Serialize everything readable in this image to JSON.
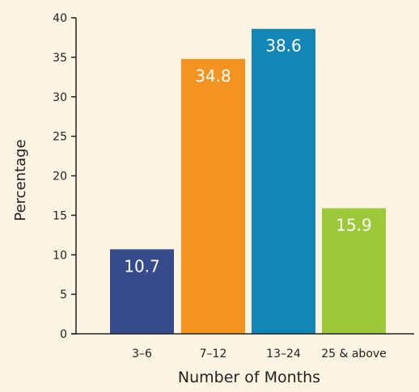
{
  "chart_data": {
    "type": "bar",
    "title": "",
    "xlabel": "Number of Months",
    "ylabel": "Percentage",
    "categories": [
      "3–6",
      "7–12",
      "13–24",
      "25 & above"
    ],
    "values": [
      10.7,
      34.8,
      38.6,
      15.9
    ],
    "value_labels": [
      "10.7",
      "34.8",
      "38.6",
      "15.9"
    ],
    "colors": [
      "#374a8c",
      "#f39420",
      "#1386b5",
      "#9cc83a"
    ],
    "ylim": [
      0,
      40
    ],
    "yticks": [
      0,
      5,
      10,
      15,
      20,
      25,
      30,
      35,
      40
    ],
    "ytick_labels": [
      "0",
      "5",
      "10",
      "15",
      "20",
      "25",
      "30",
      "35",
      "40"
    ],
    "grid": false,
    "legend": "none",
    "background": "#fcf4e3",
    "axis_color": "#222222",
    "value_label_color": "#ffffff"
  }
}
